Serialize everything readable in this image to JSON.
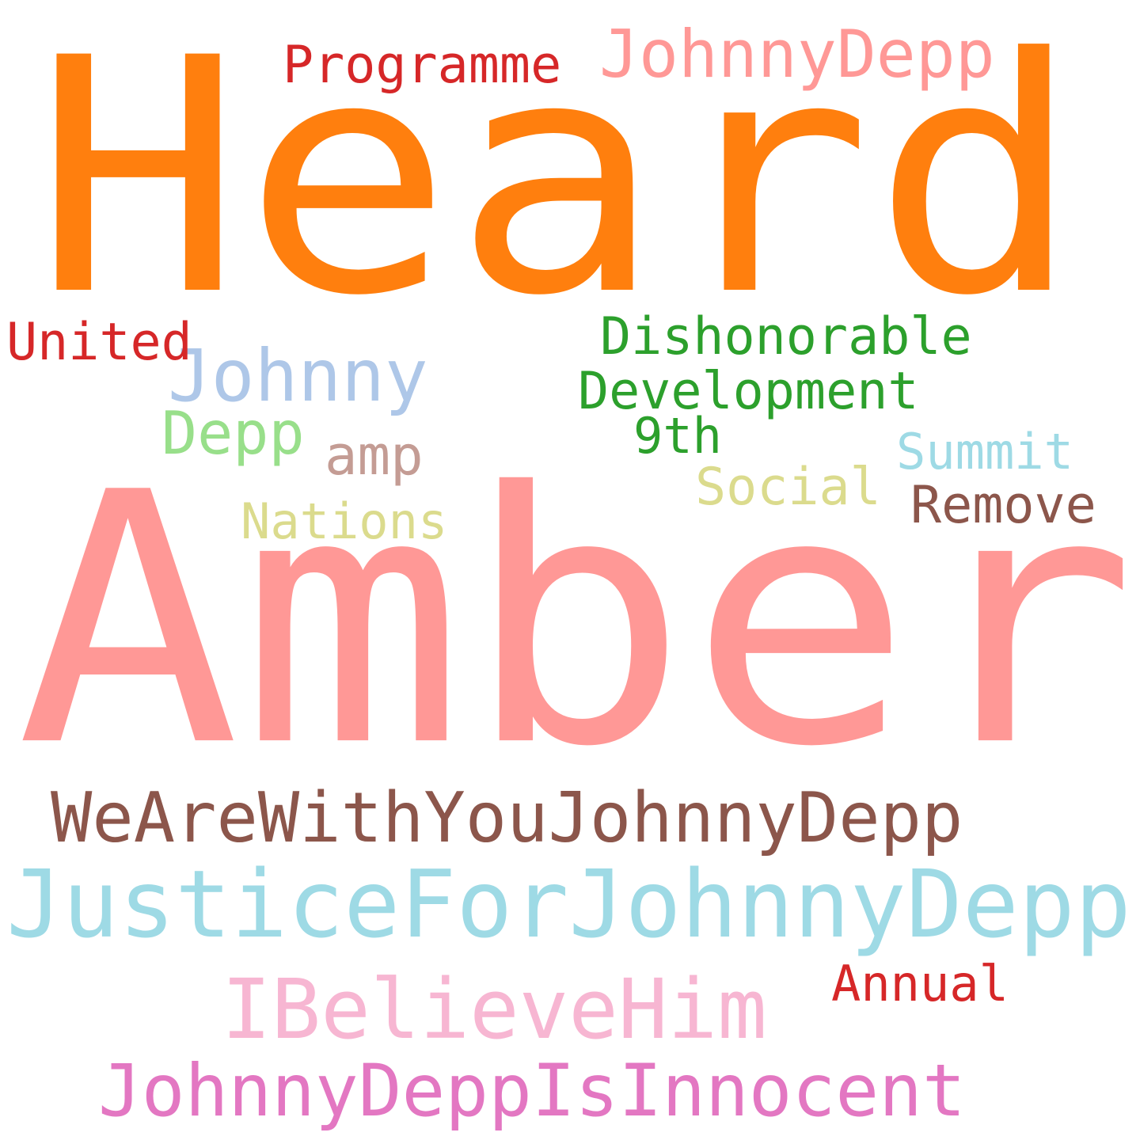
{
  "words": [
    {
      "text": "Heard",
      "color": "#ff7f0e"
    },
    {
      "text": "Amber",
      "color": "#ff9896"
    },
    {
      "text": "JusticeForJohnnyDepp",
      "color": "#9edae5"
    },
    {
      "text": "WeAreWithYouJohnnyDepp",
      "color": "#8c564b"
    },
    {
      "text": "IBelieveHim",
      "color": "#f7b6d2"
    },
    {
      "text": "JohnnyDeppIsInnocent",
      "color": "#e377c2"
    },
    {
      "text": "JohnnyDepp",
      "color": "#ff9896"
    },
    {
      "text": "Johnny",
      "color": "#aec7e8"
    },
    {
      "text": "Programme",
      "color": "#d62728"
    },
    {
      "text": "Dishonorable",
      "color": "#2ca02c"
    },
    {
      "text": "Development",
      "color": "#2ca02c"
    },
    {
      "text": "United",
      "color": "#d62728"
    },
    {
      "text": "Depp",
      "color": "#98df8a"
    },
    {
      "text": "amp",
      "color": "#c49c94"
    },
    {
      "text": "9th",
      "color": "#2ca02c"
    },
    {
      "text": "Summit",
      "color": "#9edae5"
    },
    {
      "text": "Social",
      "color": "#dbdb8d"
    },
    {
      "text": "Remove",
      "color": "#8c564b"
    },
    {
      "text": "Nations",
      "color": "#dbdb8d"
    },
    {
      "text": "Annual",
      "color": "#d62728"
    }
  ]
}
